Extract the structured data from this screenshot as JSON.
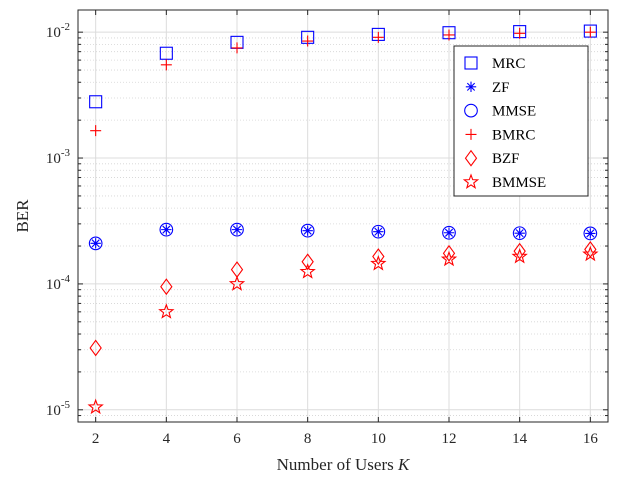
{
  "chart_data": {
    "type": "scatter",
    "x": [
      2,
      4,
      6,
      8,
      10,
      12,
      14,
      16
    ],
    "xlabel": "Number of Users",
    "xlabel_var": "K",
    "ylabel": "BER",
    "xlim": [
      1.5,
      16.5
    ],
    "ylim": [
      8e-06,
      0.015
    ],
    "yscale": "log",
    "x_ticks": [
      "2",
      "4",
      "6",
      "8",
      "10",
      "12",
      "14",
      "16"
    ],
    "y_ticks": [
      {
        "base": "10",
        "exp": "-5",
        "value": 1e-05
      },
      {
        "base": "10",
        "exp": "-4",
        "value": 0.0001
      },
      {
        "base": "10",
        "exp": "-3",
        "value": 0.001
      },
      {
        "base": "10",
        "exp": "-2",
        "value": 0.01
      }
    ],
    "grid": true,
    "legend_position": "top-right",
    "series": [
      {
        "name": "MRC",
        "marker": "square",
        "color": "#0000ff",
        "values": [
          0.0028,
          0.0068,
          0.0083,
          0.0091,
          0.0096,
          0.0099,
          0.0101,
          0.0102
        ]
      },
      {
        "name": "ZF",
        "marker": "asterisk",
        "color": "#0000ff",
        "values": [
          0.00021,
          0.00027,
          0.00027,
          0.000265,
          0.00026,
          0.000255,
          0.000253,
          0.000252
        ]
      },
      {
        "name": "MMSE",
        "marker": "circle",
        "color": "#0000ff",
        "values": [
          0.00021,
          0.00027,
          0.00027,
          0.000265,
          0.00026,
          0.000255,
          0.000253,
          0.000252
        ]
      },
      {
        "name": "BMRC",
        "marker": "plus",
        "color": "#ff0000",
        "values": [
          0.00165,
          0.0055,
          0.0075,
          0.0085,
          0.0091,
          0.0095,
          0.0098,
          0.01
        ]
      },
      {
        "name": "BZF",
        "marker": "diamond",
        "color": "#ff0000",
        "values": [
          3.1e-05,
          9.5e-05,
          0.00013,
          0.00015,
          0.000165,
          0.000175,
          0.000182,
          0.000188
        ]
      },
      {
        "name": "BMMSE",
        "marker": "star",
        "color": "#ff0000",
        "values": [
          1.05e-05,
          6e-05,
          0.0001,
          0.000125,
          0.000145,
          0.000157,
          0.000165,
          0.000172
        ]
      }
    ]
  }
}
